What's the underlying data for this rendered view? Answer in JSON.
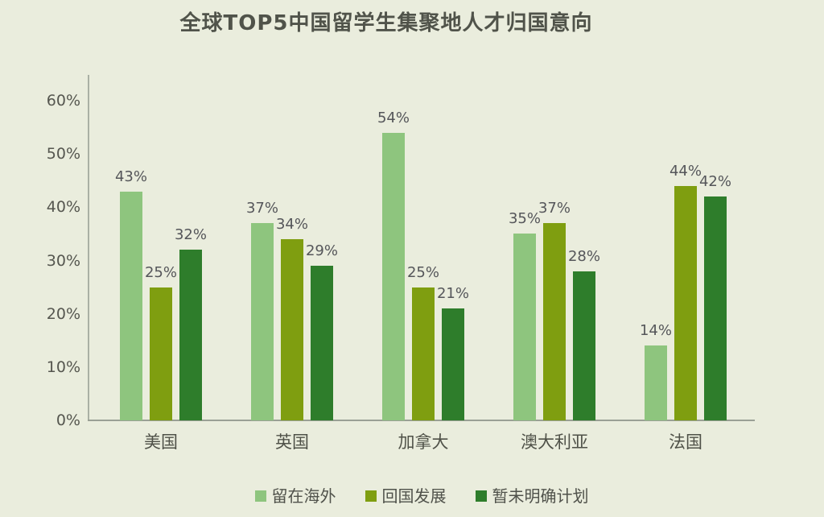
{
  "colors": {
    "background": "#eaeddd",
    "axis_line": "#aab0a4",
    "text": "#55565a",
    "title_text": "#50534a"
  },
  "chart_data": {
    "type": "bar",
    "title": "全球TOP5中国留学生集聚地人才归国意向",
    "categories": [
      "美国",
      "英国",
      "加拿大",
      "澳大利亚",
      "法国"
    ],
    "series": [
      {
        "name": "留在海外",
        "color": "#8ec57e",
        "values": [
          43,
          37,
          54,
          35,
          14
        ]
      },
      {
        "name": "回国发展",
        "color": "#7f9e10",
        "values": [
          25,
          34,
          25,
          37,
          44
        ]
      },
      {
        "name": "暂未明确计划",
        "color": "#2e7d2b",
        "values": [
          32,
          29,
          21,
          28,
          42
        ]
      }
    ],
    "xlabel": "",
    "ylabel": "",
    "ylim": [
      0,
      60
    ],
    "yticks": [
      "0%",
      "10%",
      "20%",
      "30%",
      "40%",
      "50%",
      "60%"
    ],
    "value_label_suffix": "%",
    "grid": false,
    "legend_position": "bottom"
  }
}
